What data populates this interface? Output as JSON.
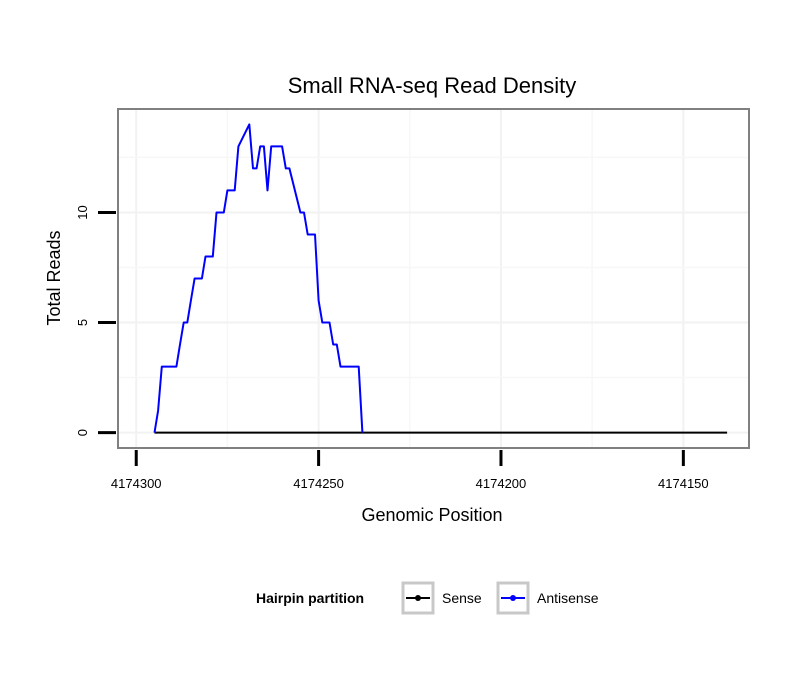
{
  "chart_data": {
    "type": "line",
    "title": "Small RNA-seq Read Density",
    "xlabel": "Genomic Position",
    "ylabel": "Total Reads",
    "xlim": [
      4174305,
      4174132
    ],
    "ylim": [
      -0.7,
      14.7
    ],
    "x_reversed": true,
    "xticks": [
      4174300,
      4174250,
      4174200,
      4174150
    ],
    "xtick_labels": [
      "4174300",
      "4174250",
      "4174200",
      "4174150"
    ],
    "yticks": [
      0,
      5,
      10
    ],
    "ytick_labels": [
      "0",
      "5",
      "10"
    ],
    "grid": true,
    "legend": {
      "title": "Hairpin partition",
      "position": "bottom",
      "entries": [
        {
          "label": "Sense",
          "color": "#000000"
        },
        {
          "label": "Antisense",
          "color": "#0000ff"
        }
      ]
    },
    "series": [
      {
        "name": "Sense",
        "color": "#000000",
        "x": [
          4174295,
          4174138
        ],
        "y": [
          0,
          0
        ]
      },
      {
        "name": "Antisense",
        "color": "#0000ff",
        "x": [
          4174295,
          4174294,
          4174293,
          4174289,
          4174288,
          4174287,
          4174286,
          4174285,
          4174284,
          4174282,
          4174281,
          4174279,
          4174278,
          4174276,
          4174275,
          4174273,
          4174272,
          4174269,
          4174268,
          4174267,
          4174266,
          4174265,
          4174264,
          4174263,
          4174262,
          4174261,
          4174260,
          4174259,
          4174258,
          4174255,
          4174254,
          4174253,
          4174251,
          4174250,
          4174249,
          4174247,
          4174246,
          4174245,
          4174244,
          4174243,
          4174242,
          4174241,
          4174239,
          4174238
        ],
        "y": [
          0,
          1,
          3,
          3,
          4,
          5,
          5,
          6,
          7,
          7,
          8,
          8,
          10,
          10,
          11,
          11,
          13,
          14,
          12,
          12,
          13,
          13,
          11,
          13,
          13,
          13,
          13,
          12,
          12,
          10,
          10,
          9,
          9,
          6,
          5,
          5,
          4,
          4,
          3,
          3,
          3,
          3,
          3,
          0
        ]
      }
    ]
  }
}
